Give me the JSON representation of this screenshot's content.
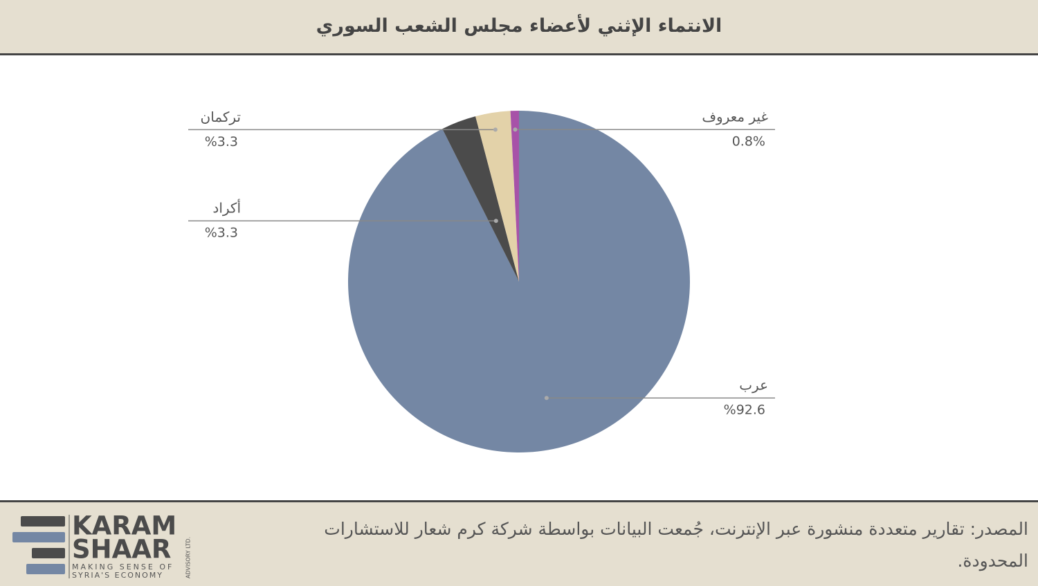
{
  "chart_data": {
    "type": "pie",
    "title": "الانتماء الإثني لأعضاء مجلس الشعب السوري",
    "categories": [
      "عرب",
      "أكراد",
      "تركمان",
      "غير معروف"
    ],
    "values": [
      92.6,
      3.3,
      3.3,
      0.8
    ],
    "value_labels": [
      "%92.6",
      "%3.3",
      "%3.3",
      "0.8%"
    ],
    "colors": [
      "#7487a4",
      "#4b4b4b",
      "#e3d2a9",
      "#a752a8"
    ]
  },
  "footer": {
    "source": "المصدر: تقارير متعددة منشورة عبر الإنترنت، جُمعت البيانات بواسطة شركة كرم شعار للاستشارات المحدودة.",
    "logo": {
      "line1": "KARAM",
      "line2": "SHAAR",
      "tagline1": "MAKING SENSE OF",
      "tagline2": "SYRIA'S ECONOMY",
      "side": "ADVISORY LTD."
    }
  }
}
